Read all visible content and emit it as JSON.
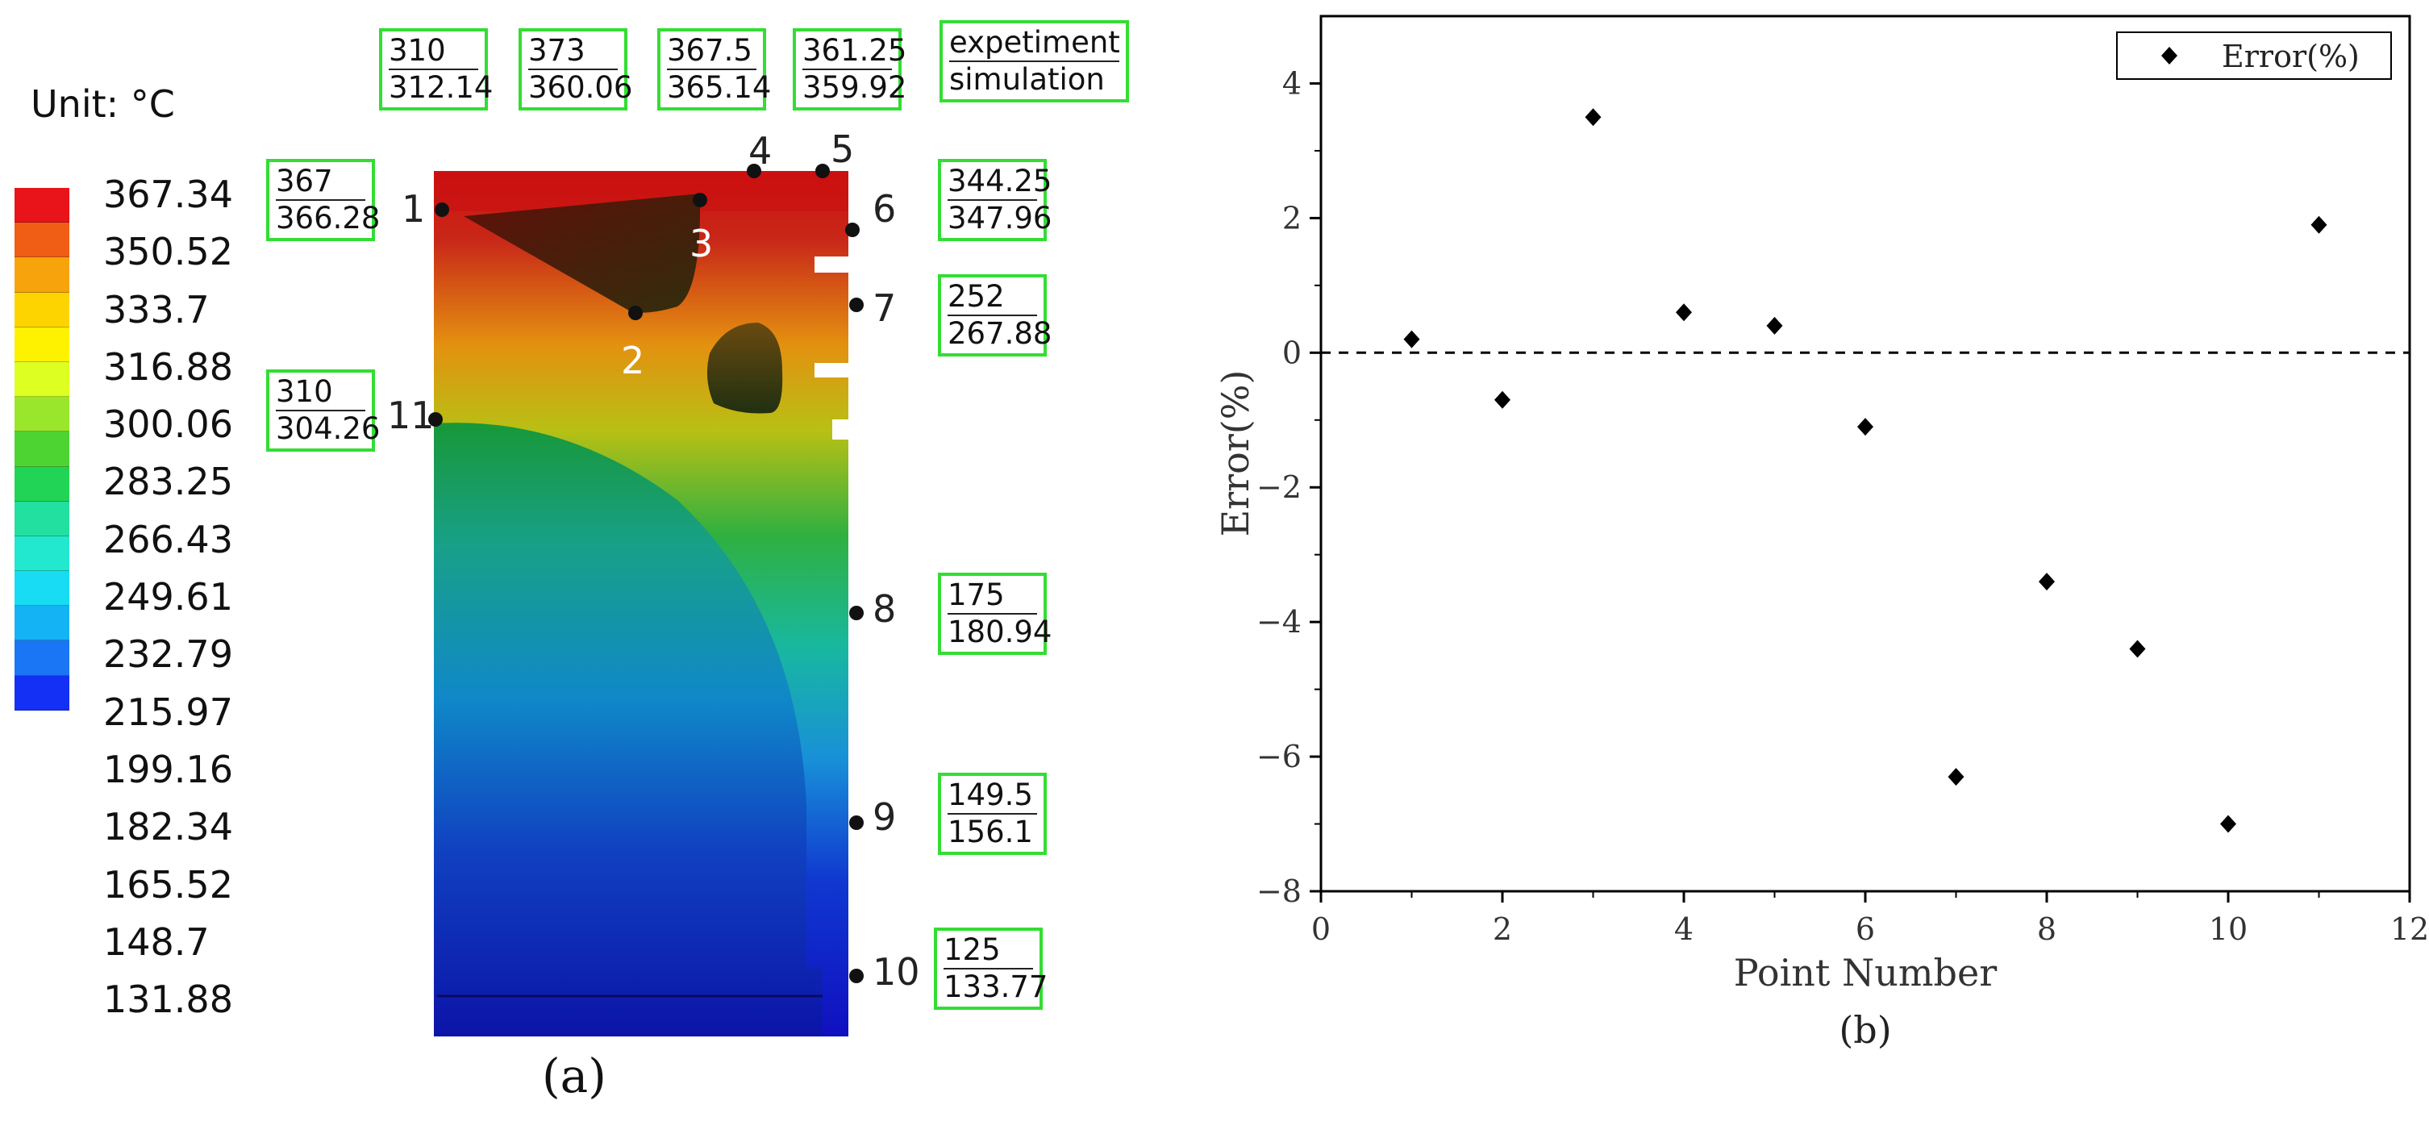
{
  "panel_a": {
    "unit_label": "Unit: °C",
    "colorbar_labels": [
      "367.34",
      "350.52",
      "333.7",
      "316.88",
      "300.06",
      "283.25",
      "266.43",
      "249.61",
      "232.79",
      "215.97",
      "199.16",
      "182.34",
      "165.52",
      "148.7",
      "131.88"
    ],
    "colorbar_colors": [
      "#e8141a",
      "#f05d14",
      "#f7a40c",
      "#fed400",
      "#fff200",
      "#ddff22",
      "#9ae62c",
      "#4dd432",
      "#22d455",
      "#22e0a0",
      "#22e8d0",
      "#18dcf4",
      "#14b4f4",
      "#1a76f4",
      "#1430f4"
    ],
    "legend_box": {
      "top": "expetiment",
      "bottom": "simulation"
    },
    "points": [
      {
        "n": "1",
        "experiment": "367",
        "simulation": "366.28"
      },
      {
        "n": "2",
        "experiment": "310",
        "simulation": "312.14"
      },
      {
        "n": "3",
        "experiment": "373",
        "simulation": "360.06"
      },
      {
        "n": "4",
        "experiment": "367.5",
        "simulation": "365.14"
      },
      {
        "n": "5",
        "experiment": "361.25",
        "simulation": "359.92"
      },
      {
        "n": "6",
        "experiment": "344.25",
        "simulation": "347.96"
      },
      {
        "n": "7",
        "experiment": "252",
        "simulation": "267.88"
      },
      {
        "n": "8",
        "experiment": "175",
        "simulation": "180.94"
      },
      {
        "n": "9",
        "experiment": "149.5",
        "simulation": "156.1"
      },
      {
        "n": "10",
        "experiment": "125",
        "simulation": "133.77"
      },
      {
        "n": "11",
        "experiment": "310",
        "simulation": "304.26"
      }
    ],
    "caption": "(a)"
  },
  "chart_data": {
    "type": "scatter",
    "x": [
      1,
      2,
      3,
      4,
      5,
      6,
      7,
      8,
      9,
      10,
      11
    ],
    "series": [
      {
        "name": "Error(%)",
        "values": [
          0.2,
          -0.7,
          3.5,
          0.6,
          0.4,
          -1.1,
          -6.3,
          -3.4,
          -4.4,
          -7.0,
          1.9
        ]
      }
    ],
    "xlabel": "Point Number",
    "ylabel": "Error(%)",
    "xlim": [
      0,
      12
    ],
    "ylim": [
      -8,
      5
    ],
    "xticks": [
      0,
      2,
      4,
      6,
      8,
      10,
      12
    ],
    "yticks": [
      -8,
      -6,
      -4,
      -2,
      0,
      2,
      4
    ],
    "reference_line": 0,
    "legend_position": "top-right",
    "grid": false,
    "caption": "(b)"
  }
}
